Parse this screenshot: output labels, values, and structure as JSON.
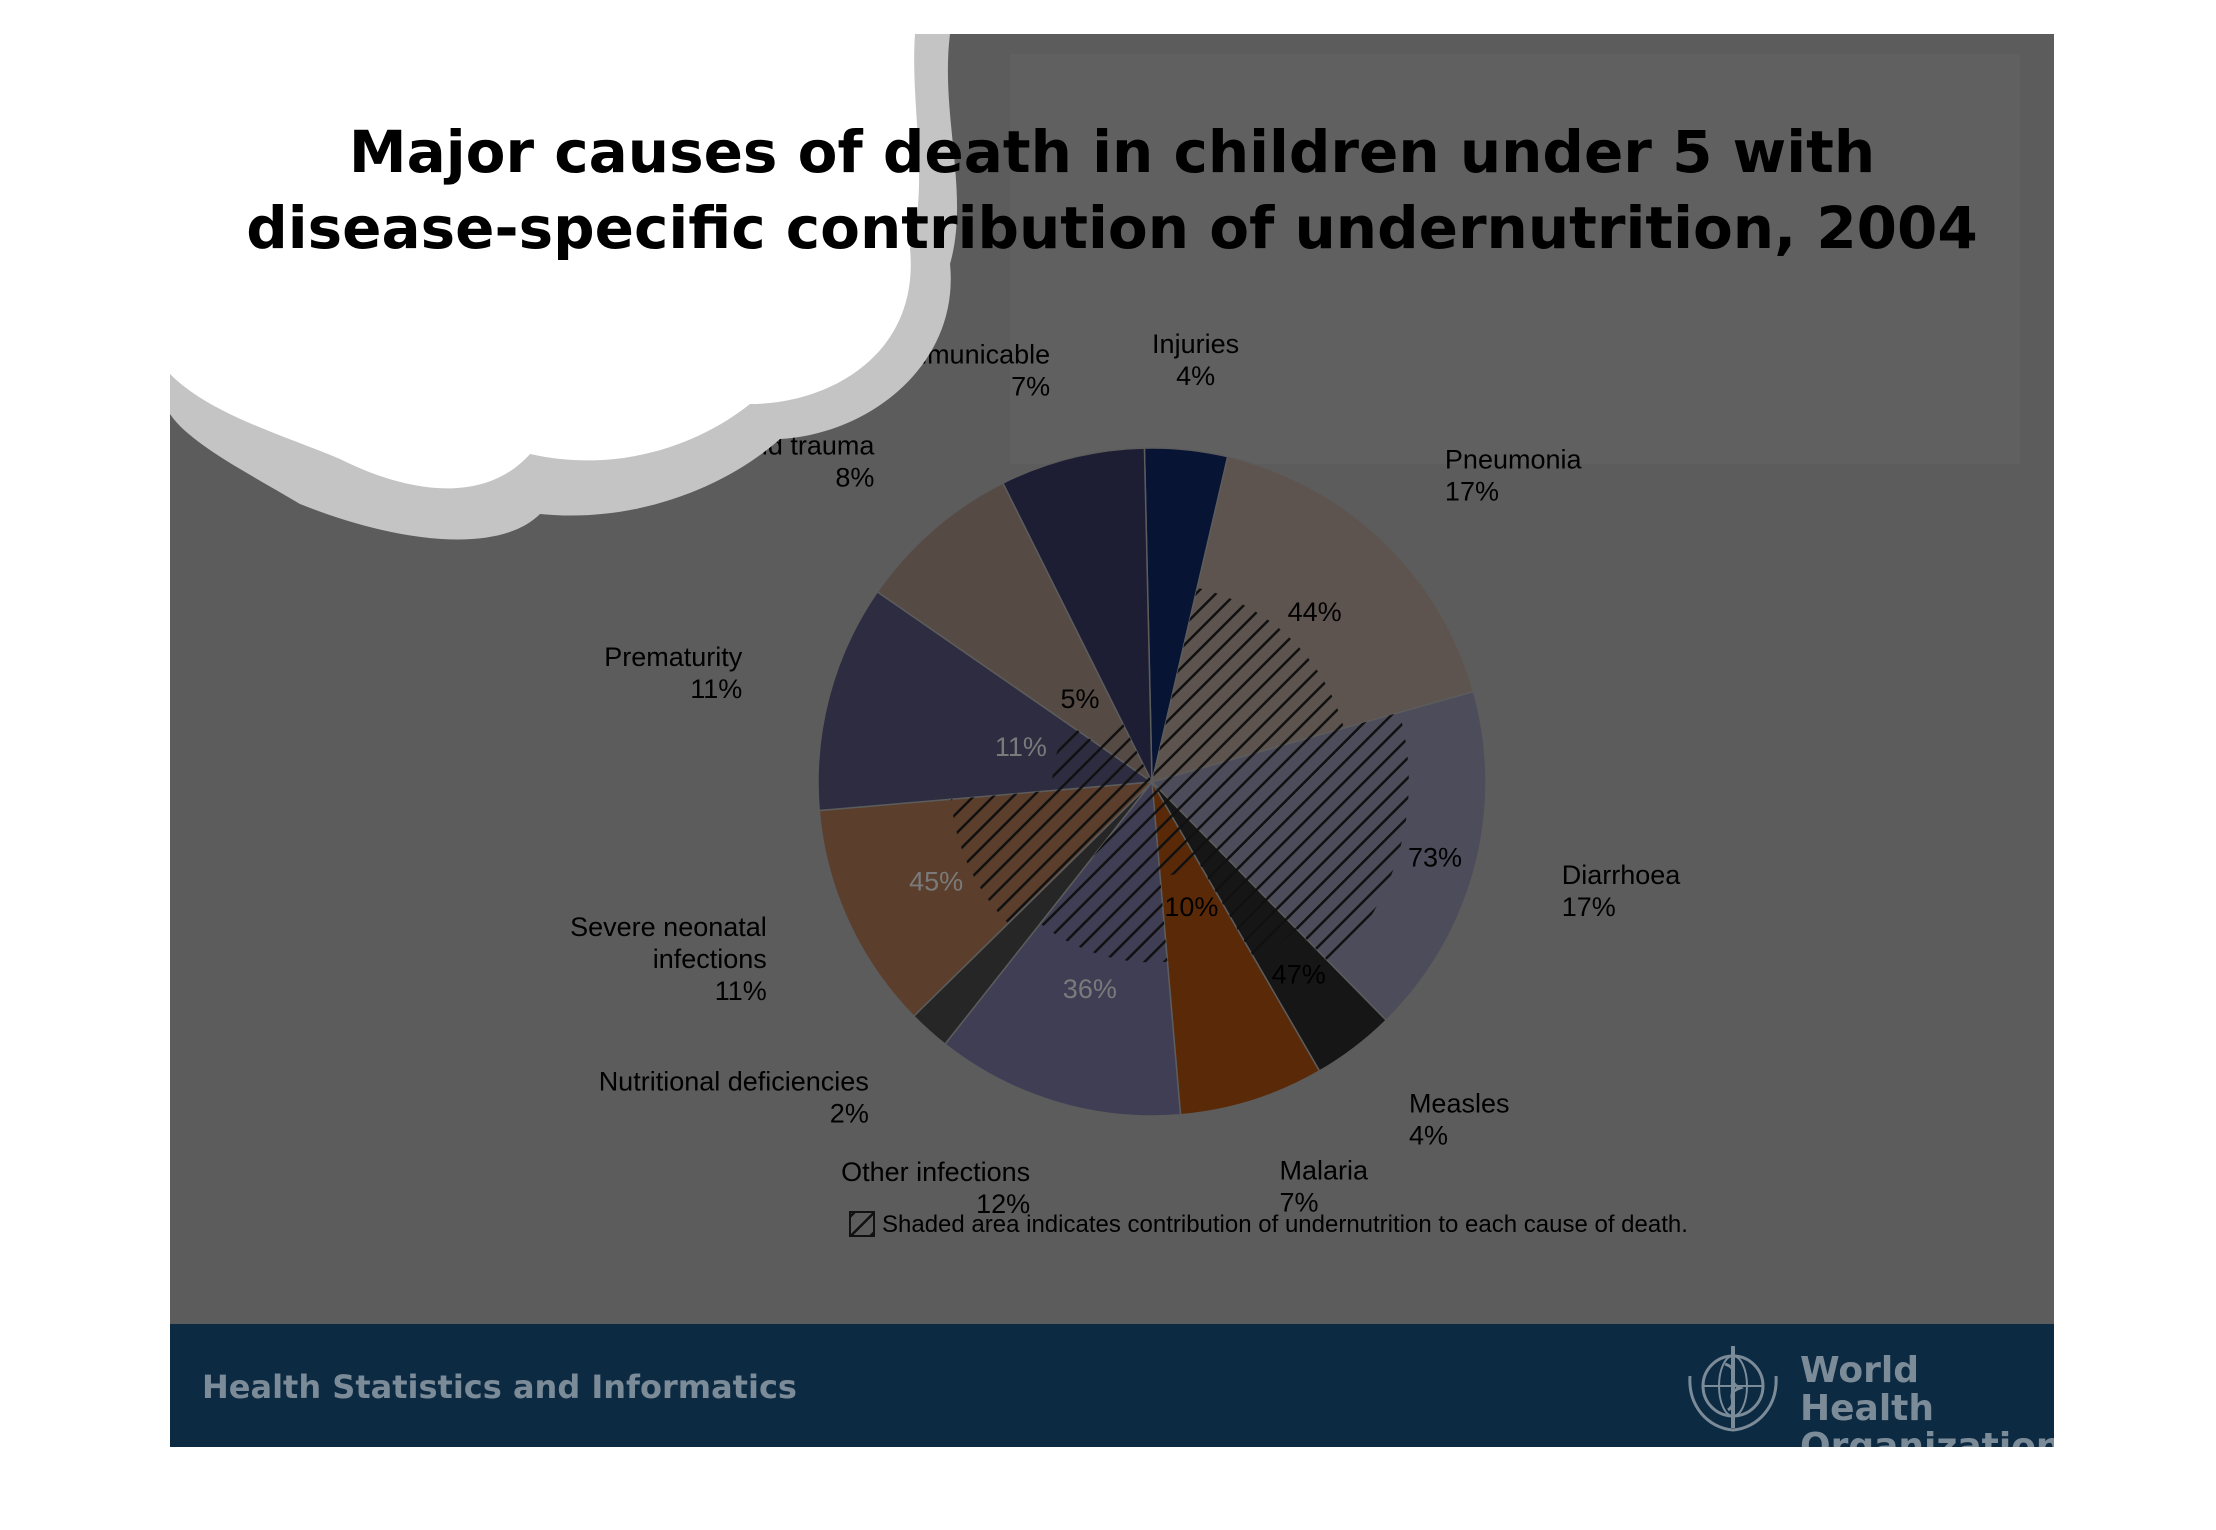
{
  "slide": {
    "title_line1": "Major causes of death in children under 5 with",
    "title_line2": "disease-specific contribution of undernutrition, 2004",
    "footer_text": "Health Statistics and Informatics",
    "org_line1": "World Health",
    "org_line2": "Organization"
  },
  "chart_data": {
    "type": "pie",
    "title": "Major causes of death in children under 5 with disease-specific contribution of undernutrition, 2004",
    "slices": [
      {
        "label": "Injuries",
        "pct_label": "4%",
        "value": 4,
        "color": "#071433",
        "undernutrition": null,
        "labelLines": [
          "Injuries",
          "4%"
        ]
      },
      {
        "label": "Pneumonia",
        "pct_label": "17%",
        "value": 17,
        "color": "#5e544f",
        "undernutrition": "44%",
        "labelLines": [
          "Pneumonia",
          "17%"
        ]
      },
      {
        "label": "Diarrhoea",
        "pct_label": "17%",
        "value": 17,
        "color": "#4d4c5a",
        "undernutrition": "73%",
        "labelLines": [
          "Diarrhoea",
          "17%"
        ]
      },
      {
        "label": "Measles",
        "pct_label": "4%",
        "value": 4,
        "color": "#161616",
        "undernutrition": "47%",
        "labelLines": [
          "Measles",
          "4%"
        ]
      },
      {
        "label": "Malaria",
        "pct_label": "7%",
        "value": 7,
        "color": "#5a2a08",
        "undernutrition": "10%",
        "labelLines": [
          "Malaria",
          "7%"
        ]
      },
      {
        "label": "Other infections",
        "pct_label": "12%",
        "value": 12,
        "color": "#3f3e55",
        "undernutrition": "36%",
        "labelLines": [
          "Other infections",
          "12%"
        ]
      },
      {
        "label": "Nutritional deficiencies",
        "pct_label": "2%",
        "value": 2,
        "color": "#262626",
        "undernutrition": null,
        "labelLines": [
          "Nutritional deficiencies",
          "2%"
        ]
      },
      {
        "label": "Severe neonatal infections",
        "pct_label": "11%",
        "value": 11,
        "color": "#5b3e2b",
        "undernutrition": "45%",
        "labelLines": [
          "Severe neonatal",
          "infections",
          "11%"
        ]
      },
      {
        "label": "Prematurity",
        "pct_label": "11%",
        "value": 11,
        "color": "#2d2c40",
        "undernutrition": "11%",
        "labelLines": [
          "Prematurity",
          "11%"
        ]
      },
      {
        "label": "Birth asphyxia and trauma",
        "pct_label": "8%",
        "value": 8,
        "color": "#564a44",
        "undernutrition": "5%",
        "labelLines": [
          "Birth asphyxia and trauma",
          "8%"
        ]
      },
      {
        "label": "Non communicable",
        "pct_label": "7%",
        "value": 7,
        "color": "#1d1d33",
        "undernutrition": null,
        "labelLines": [
          "Non communicable",
          "7%"
        ]
      }
    ],
    "legend_note": "Shaded area indicates contribution of undernutrition to each cause of death."
  }
}
